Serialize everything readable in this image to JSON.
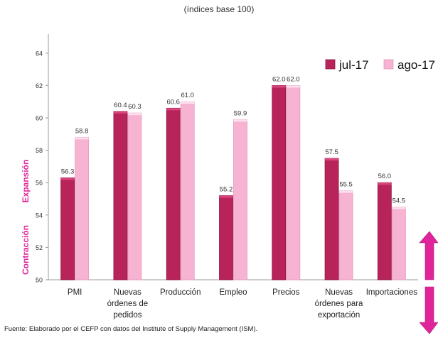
{
  "chart_data": {
    "type": "bar",
    "subtitle": "(índices base 100)",
    "categories": [
      [
        "PMI"
      ],
      [
        "Nuevas",
        "órdenes de",
        "pedidos"
      ],
      [
        "Producción"
      ],
      [
        "Empleo"
      ],
      [
        "Precios"
      ],
      [
        "Nuevas",
        "órdenes para",
        "exportación"
      ],
      [
        "Importaciones"
      ]
    ],
    "series": [
      {
        "name": "jul-17",
        "color": "#b8235a",
        "values": [
          56.3,
          60.4,
          60.6,
          55.2,
          62.0,
          57.5,
          56.0
        ]
      },
      {
        "name": "ago-17",
        "color": "#f6b3d2",
        "values": [
          58.8,
          60.3,
          61.0,
          59.9,
          62.0,
          55.5,
          54.5
        ]
      }
    ],
    "ylim": [
      50,
      65
    ],
    "yticks": [
      50,
      52,
      54,
      56,
      58,
      60,
      62,
      64
    ],
    "grid": false,
    "legend": "top-right",
    "annotations": {
      "expansion": "Expansión",
      "contraction": "Contracción"
    },
    "accent_color": "#e0249a"
  },
  "source": "Fuente: Elaborado por el CEFP con datos del Institute of Supply Management (ISM)."
}
